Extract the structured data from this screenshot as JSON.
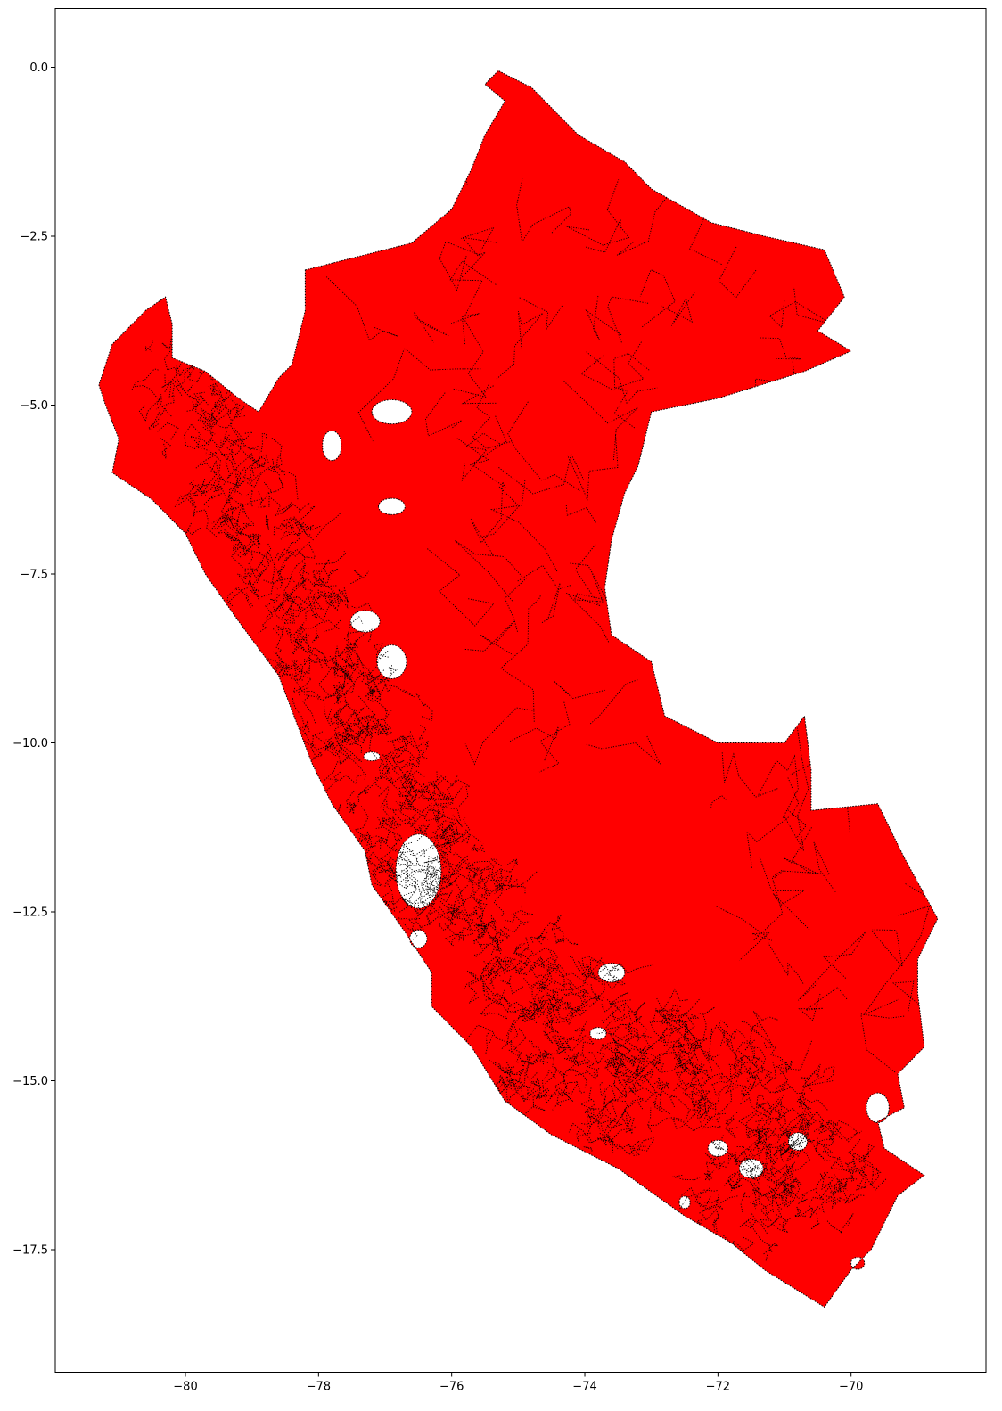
{
  "chart_data": {
    "type": "map",
    "title": "",
    "xlabel": "",
    "ylabel": "",
    "xlim": [
      -82.0,
      -68.0
    ],
    "ylim": [
      -19.2,
      0.87
    ],
    "x_ticks": [
      {
        "value": -80,
        "label": "−80"
      },
      {
        "value": -78,
        "label": "−78"
      },
      {
        "value": -76,
        "label": "−76"
      },
      {
        "value": -74,
        "label": "−74"
      },
      {
        "value": -72,
        "label": "−72"
      },
      {
        "value": -70,
        "label": "−70"
      }
    ],
    "y_ticks": [
      {
        "value": 0.0,
        "label": "0.0"
      },
      {
        "value": -2.5,
        "label": "−2.5"
      },
      {
        "value": -5.0,
        "label": "−5.0"
      },
      {
        "value": -7.5,
        "label": "−7.5"
      },
      {
        "value": -10.0,
        "label": "−10.0"
      },
      {
        "value": -12.5,
        "label": "−12.5"
      },
      {
        "value": -15.0,
        "label": "−15.0"
      },
      {
        "value": -17.5,
        "label": "−17.5"
      }
    ],
    "grid": false,
    "fill_color": "#ff0000",
    "boundary_color": "#000000",
    "boundary_style": "dotted",
    "outline": [
      [
        -78.2,
        -3.0
      ],
      [
        -76.6,
        -2.6
      ],
      [
        -76.0,
        -2.1
      ],
      [
        -75.7,
        -1.5
      ],
      [
        -75.5,
        -1.0
      ],
      [
        -75.2,
        -0.5
      ],
      [
        -75.5,
        -0.25
      ],
      [
        -75.3,
        -0.05
      ],
      [
        -74.8,
        -0.3
      ],
      [
        -74.1,
        -1.0
      ],
      [
        -73.4,
        -1.4
      ],
      [
        -73.0,
        -1.8
      ],
      [
        -72.1,
        -2.3
      ],
      [
        -71.3,
        -2.5
      ],
      [
        -70.4,
        -2.7
      ],
      [
        -70.1,
        -3.4
      ],
      [
        -70.5,
        -3.9
      ],
      [
        -70.0,
        -4.2
      ],
      [
        -70.7,
        -4.5
      ],
      [
        -72.0,
        -4.9
      ],
      [
        -73.0,
        -5.1
      ],
      [
        -73.2,
        -5.9
      ],
      [
        -73.4,
        -6.3
      ],
      [
        -73.6,
        -7.0
      ],
      [
        -73.7,
        -7.7
      ],
      [
        -73.6,
        -8.4
      ],
      [
        -73.0,
        -8.8
      ],
      [
        -72.8,
        -9.6
      ],
      [
        -72.4,
        -9.8
      ],
      [
        -72.0,
        -10.0
      ],
      [
        -71.0,
        -10.0
      ],
      [
        -70.7,
        -9.6
      ],
      [
        -70.6,
        -10.4
      ],
      [
        -70.6,
        -11.0
      ],
      [
        -69.6,
        -10.9
      ],
      [
        -69.2,
        -11.7
      ],
      [
        -68.7,
        -12.6
      ],
      [
        -69.0,
        -13.2
      ],
      [
        -69.0,
        -13.7
      ],
      [
        -68.9,
        -14.5
      ],
      [
        -69.3,
        -14.9
      ],
      [
        -69.2,
        -15.4
      ],
      [
        -69.6,
        -15.6
      ],
      [
        -69.5,
        -16.0
      ],
      [
        -68.9,
        -16.4
      ],
      [
        -69.3,
        -16.7
      ],
      [
        -69.5,
        -17.1
      ],
      [
        -69.7,
        -17.5
      ],
      [
        -70.0,
        -17.8
      ],
      [
        -70.4,
        -18.35
      ],
      [
        -71.3,
        -17.8
      ],
      [
        -71.8,
        -17.4
      ],
      [
        -72.5,
        -17.0
      ],
      [
        -73.5,
        -16.3
      ],
      [
        -74.5,
        -15.8
      ],
      [
        -75.2,
        -15.3
      ],
      [
        -75.7,
        -14.5
      ],
      [
        -76.3,
        -13.9
      ],
      [
        -76.3,
        -13.4
      ],
      [
        -76.7,
        -12.8
      ],
      [
        -77.2,
        -12.1
      ],
      [
        -77.3,
        -11.6
      ],
      [
        -77.8,
        -10.9
      ],
      [
        -78.1,
        -10.3
      ],
      [
        -78.6,
        -9.0
      ],
      [
        -79.2,
        -8.2
      ],
      [
        -79.7,
        -7.5
      ],
      [
        -80.0,
        -6.9
      ],
      [
        -80.5,
        -6.4
      ],
      [
        -81.1,
        -6.0
      ],
      [
        -81.0,
        -5.5
      ],
      [
        -81.2,
        -5.0
      ],
      [
        -81.3,
        -4.7
      ],
      [
        -81.1,
        -4.1
      ],
      [
        -80.6,
        -3.6
      ],
      [
        -80.3,
        -3.4
      ],
      [
        -80.2,
        -3.8
      ],
      [
        -80.2,
        -4.3
      ],
      [
        -79.7,
        -4.5
      ],
      [
        -79.2,
        -4.9
      ],
      [
        -78.9,
        -5.1
      ],
      [
        -78.6,
        -4.6
      ],
      [
        -78.4,
        -4.4
      ],
      [
        -78.2,
        -3.6
      ],
      [
        -78.2,
        -3.0
      ]
    ],
    "holes": [
      {
        "center": [
          -76.9,
          -5.1
        ],
        "radius": [
          0.3,
          0.18
        ]
      },
      {
        "center": [
          -77.8,
          -5.6
        ],
        "radius": [
          0.14,
          0.2
        ]
      },
      {
        "center": [
          -76.5,
          -11.9
        ],
        "radius": [
          0.34,
          0.55
        ]
      },
      {
        "center": [
          -76.9,
          -8.8
        ],
        "radius": [
          0.22,
          0.25
        ]
      },
      {
        "center": [
          -77.3,
          -8.2
        ],
        "radius": [
          0.22,
          0.16
        ]
      },
      {
        "center": [
          -76.9,
          -6.5
        ],
        "radius": [
          0.2,
          0.12
        ]
      },
      {
        "center": [
          -73.6,
          -13.4
        ],
        "radius": [
          0.2,
          0.14
        ]
      },
      {
        "center": [
          -71.5,
          -16.3
        ],
        "radius": [
          0.18,
          0.14
        ]
      },
      {
        "center": [
          -70.8,
          -15.9
        ],
        "radius": [
          0.14,
          0.12
        ]
      },
      {
        "center": [
          -69.6,
          -15.4
        ],
        "radius": [
          0.17,
          0.22
        ]
      },
      {
        "center": [
          -72.0,
          -16.0
        ],
        "radius": [
          0.15,
          0.12
        ]
      },
      {
        "center": [
          -76.5,
          -12.9
        ],
        "radius": [
          0.13,
          0.13
        ]
      },
      {
        "center": [
          -73.8,
          -14.3
        ],
        "radius": [
          0.12,
          0.08
        ]
      },
      {
        "center": [
          -77.2,
          -10.2
        ],
        "radius": [
          0.12,
          0.06
        ]
      },
      {
        "center": [
          -69.9,
          -17.7
        ],
        "radius": [
          0.1,
          0.08
        ]
      },
      {
        "center": [
          -72.5,
          -16.8
        ],
        "radius": [
          0.08,
          0.08
        ]
      }
    ]
  }
}
